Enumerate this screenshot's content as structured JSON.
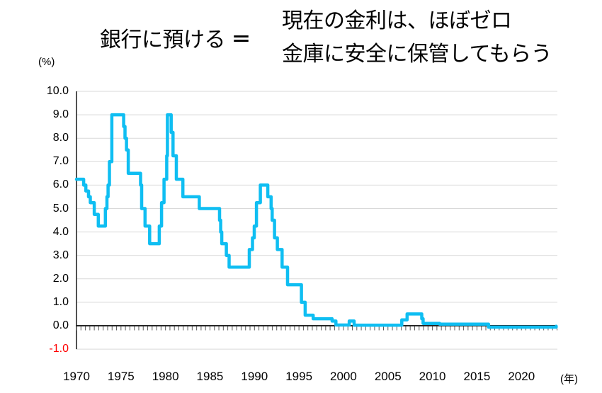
{
  "header": {
    "left_title": "銀行に預ける",
    "equals": "＝",
    "right_line1": "現在の金利は、ほぼゼロ",
    "right_line2": "金庫に安全に保管してもらう"
  },
  "chart_data": {
    "type": "line",
    "title": "",
    "unit_label": "(%)",
    "x_unit_label": "(年)",
    "line_color": "#0fbef2",
    "gridline_color": "#d9d9d9",
    "axis_color": "#262626",
    "tick_color": "#595959",
    "negative_label_color": "#ff0000",
    "y_range": [
      -1.0,
      10.0
    ],
    "x_range": [
      1970,
      2024
    ],
    "grid": "horizontal",
    "legend_position": "none",
    "y_ticks": [
      10,
      9,
      8,
      7,
      6,
      5,
      4,
      3,
      2,
      1,
      0,
      -1
    ],
    "y_tick_labels": [
      "10.0",
      "9.0",
      "8.0",
      "7.0",
      "6.0",
      "5.0",
      "4.0",
      "3.0",
      "2.0",
      "1.0",
      "0.0",
      "-1.0"
    ],
    "x_ticks": [
      1970,
      1975,
      1980,
      1985,
      1990,
      1995,
      2000,
      2005,
      2010,
      2015,
      2020
    ],
    "x_tick_labels": [
      "1970",
      "1975",
      "1980",
      "1985",
      "1990",
      "1995",
      "2000",
      "2005",
      "2010",
      "2015",
      "2020"
    ],
    "series": [
      {
        "step": "after",
        "points": [
          [
            1970.0,
            6.25
          ],
          [
            1970.8,
            6.0
          ],
          [
            1971.05,
            5.75
          ],
          [
            1971.35,
            5.5
          ],
          [
            1971.55,
            5.25
          ],
          [
            1972.0,
            4.75
          ],
          [
            1972.45,
            4.25
          ],
          [
            1973.25,
            5.0
          ],
          [
            1973.42,
            5.5
          ],
          [
            1973.55,
            6.0
          ],
          [
            1973.7,
            7.0
          ],
          [
            1973.97,
            9.0
          ],
          [
            1975.3,
            8.5
          ],
          [
            1975.45,
            8.0
          ],
          [
            1975.62,
            7.5
          ],
          [
            1975.82,
            6.5
          ],
          [
            1977.2,
            6.0
          ],
          [
            1977.32,
            5.0
          ],
          [
            1977.7,
            4.25
          ],
          [
            1978.22,
            3.5
          ],
          [
            1979.3,
            4.25
          ],
          [
            1979.56,
            5.25
          ],
          [
            1979.84,
            6.25
          ],
          [
            1980.14,
            7.25
          ],
          [
            1980.22,
            9.0
          ],
          [
            1980.64,
            8.25
          ],
          [
            1980.85,
            7.25
          ],
          [
            1981.22,
            6.25
          ],
          [
            1981.95,
            5.5
          ],
          [
            1983.8,
            5.0
          ],
          [
            1986.08,
            4.5
          ],
          [
            1986.2,
            4.0
          ],
          [
            1986.32,
            3.5
          ],
          [
            1986.84,
            3.0
          ],
          [
            1987.15,
            2.5
          ],
          [
            1989.42,
            3.25
          ],
          [
            1989.78,
            3.75
          ],
          [
            1989.98,
            4.25
          ],
          [
            1990.22,
            5.25
          ],
          [
            1990.66,
            6.0
          ],
          [
            1991.5,
            5.5
          ],
          [
            1991.87,
            5.0
          ],
          [
            1991.99,
            4.5
          ],
          [
            1992.25,
            3.75
          ],
          [
            1992.57,
            3.25
          ],
          [
            1993.1,
            2.5
          ],
          [
            1993.72,
            1.75
          ],
          [
            1995.28,
            1.0
          ],
          [
            1995.7,
            0.45
          ],
          [
            1996.6,
            0.3
          ],
          [
            1998.72,
            0.2
          ],
          [
            1999.15,
            0.03
          ],
          [
            2000.65,
            0.2
          ],
          [
            2001.2,
            0.02
          ],
          [
            2006.55,
            0.25
          ],
          [
            2007.15,
            0.5
          ],
          [
            2008.8,
            0.3
          ],
          [
            2008.95,
            0.1
          ],
          [
            2010.8,
            0.07
          ],
          [
            2016.3,
            -0.06
          ],
          [
            2023.3,
            -0.06
          ],
          [
            2023.9,
            -0.02
          ]
        ]
      }
    ]
  }
}
